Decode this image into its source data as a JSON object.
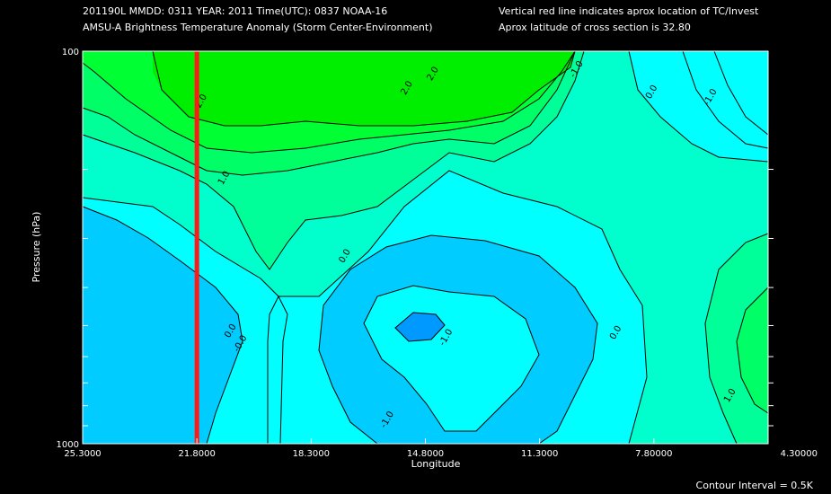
{
  "header": {
    "line1_left": "201190L  MMDD: 0311 YEAR: 2011 Time(UTC): 0837 NOAA-16",
    "line2_left": "AMSU-A Brightness Temperature Anomaly (Storm Center-Environment)",
    "line1_right": "Vertical red line indicates aprox location of TC/Invest",
    "line2_right": "Aprox latitude of cross section is 32.80"
  },
  "footer": {
    "contour_interval": "Contour Interval = 0.5K"
  },
  "colors": {
    "background": "#000000",
    "storm_line": "#ff1a1a",
    "contour_line": "#000000",
    "levels": {
      "le_-1.5": "#0066ff",
      "-1.5_-1.0": "#0099ff",
      "-1.0_-0.5": "#00ccff",
      "-0.5_0.0": "#00ffff",
      "0.0_0.5": "#00ffcc",
      "0.5_1.0": "#00ff99",
      "1.0_1.5": "#00ff66",
      "1.5_2.0": "#00ff33",
      "ge_2.0": "#00ee00"
    }
  },
  "chart_data": {
    "type": "contour",
    "title": "AMSU-A Brightness Temperature Anomaly (Storm Center-Environment)",
    "xlabel": "Longitude",
    "ylabel": "Pressure (hPa)",
    "xlim": [
      25.3,
      4.3
    ],
    "ylim": [
      1000,
      100
    ],
    "y_scale": "log",
    "x_ticks": [
      "25.3000",
      "21.8000",
      "18.3000",
      "14.8000",
      "11.3000",
      "7.80000",
      "4.30000"
    ],
    "y_ticks": [
      "100",
      "1000"
    ],
    "contour_interval": 0.5,
    "storm_longitude": 21.8,
    "cross_section_latitude": 32.8,
    "contour_labels": [
      {
        "text": "2.0",
        "lon": 21.6,
        "p": 135
      },
      {
        "text": "2.0",
        "lon": 15.3,
        "p": 125
      },
      {
        "text": "2.0",
        "lon": 14.5,
        "p": 115
      },
      {
        "text": "-1.0",
        "lon": 10.1,
        "p": 112
      },
      {
        "text": "0.0",
        "lon": 7.8,
        "p": 128
      },
      {
        "text": "-1.0",
        "lon": 6.0,
        "p": 132
      },
      {
        "text": "1.0",
        "lon": 20.9,
        "p": 212
      },
      {
        "text": "0.0",
        "lon": 17.2,
        "p": 335
      },
      {
        "text": "0.0",
        "lon": 20.7,
        "p": 520
      },
      {
        "text": "-0.0",
        "lon": 20.4,
        "p": 560
      },
      {
        "text": "-1.0",
        "lon": 14.1,
        "p": 540
      },
      {
        "text": "0.0",
        "lon": 8.9,
        "p": 525
      },
      {
        "text": "1.0",
        "lon": 5.4,
        "p": 760
      },
      {
        "text": "-1.0",
        "lon": 15.9,
        "p": 875
      }
    ]
  }
}
